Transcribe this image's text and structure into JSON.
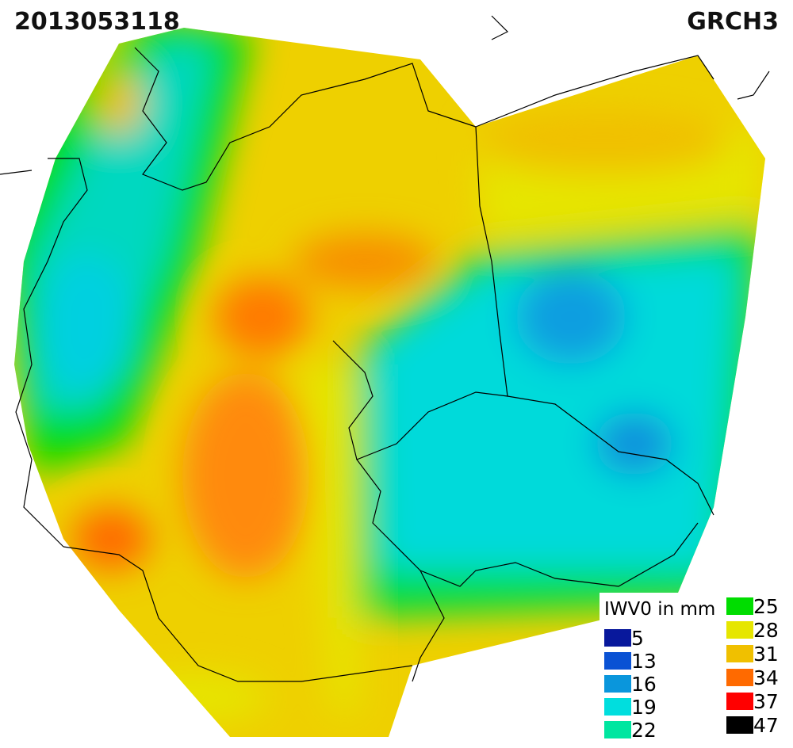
{
  "header": {
    "date": "2013053118",
    "model": "GRCH3"
  },
  "legend": {
    "title": "IWV0 in mm",
    "items": [
      {
        "value": 5,
        "color": "#08189c"
      },
      {
        "value": 13,
        "color": "#0a52d4"
      },
      {
        "value": 16,
        "color": "#0a96dc"
      },
      {
        "value": 19,
        "color": "#00dede"
      },
      {
        "value": 22,
        "color": "#00e6a0"
      },
      {
        "value": 25,
        "color": "#00dd00"
      },
      {
        "value": 28,
        "color": "#e6e600"
      },
      {
        "value": 31,
        "color": "#f0c000"
      },
      {
        "value": 34,
        "color": "#ff6a00"
      },
      {
        "value": 37,
        "color": "#ff0000"
      },
      {
        "value": 47,
        "color": "#000000"
      }
    ]
  }
}
